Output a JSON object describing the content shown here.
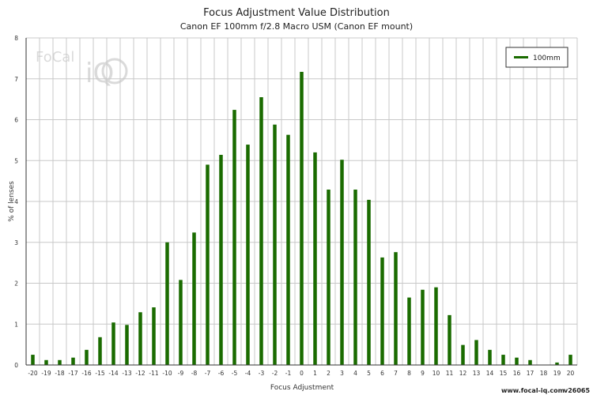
{
  "chart_data": {
    "type": "bar",
    "title": "Focus Adjustment Value Distribution",
    "subtitle": "Canon EF 100mm f/2.8 Macro USM (Canon EF mount)",
    "xlabel": "Focus Adjustment",
    "ylabel": "% of lenses",
    "ylim": [
      0,
      8
    ],
    "y_ticks": [
      "0",
      "1",
      "2",
      "3",
      "4",
      "5",
      "6",
      "7",
      "8"
    ],
    "grid": true,
    "legend_position": "top-right",
    "categories": [
      "-20",
      "-19",
      "-18",
      "-17",
      "-16",
      "-15",
      "-14",
      "-13",
      "-12",
      "-11",
      "-10",
      "-9",
      "-8",
      "-7",
      "-6",
      "-5",
      "-4",
      "-3",
      "-2",
      "-1",
      "0",
      "1",
      "2",
      "3",
      "4",
      "5",
      "6",
      "7",
      "8",
      "9",
      "10",
      "11",
      "12",
      "13",
      "14",
      "15",
      "16",
      "17",
      "18",
      "19",
      "20"
    ],
    "series": [
      {
        "name": "100mm",
        "color": "#1a6b00",
        "values": [
          0.25,
          0.12,
          0.12,
          0.18,
          0.37,
          0.68,
          1.04,
          0.98,
          1.29,
          1.41,
          3.0,
          2.08,
          3.24,
          4.9,
          5.14,
          6.24,
          5.39,
          6.55,
          5.88,
          5.63,
          7.17,
          5.2,
          4.29,
          5.02,
          4.29,
          4.04,
          2.63,
          2.76,
          1.65,
          1.84,
          1.9,
          1.22,
          0.49,
          0.61,
          0.37,
          0.25,
          0.18,
          0.12,
          0.0,
          0.06,
          0.25
        ]
      }
    ]
  },
  "logo": {
    "text_1": "FoCal",
    "text_2": "iQ"
  },
  "footer": {
    "url": "www.focal-iq.com",
    "version": "v26065"
  }
}
